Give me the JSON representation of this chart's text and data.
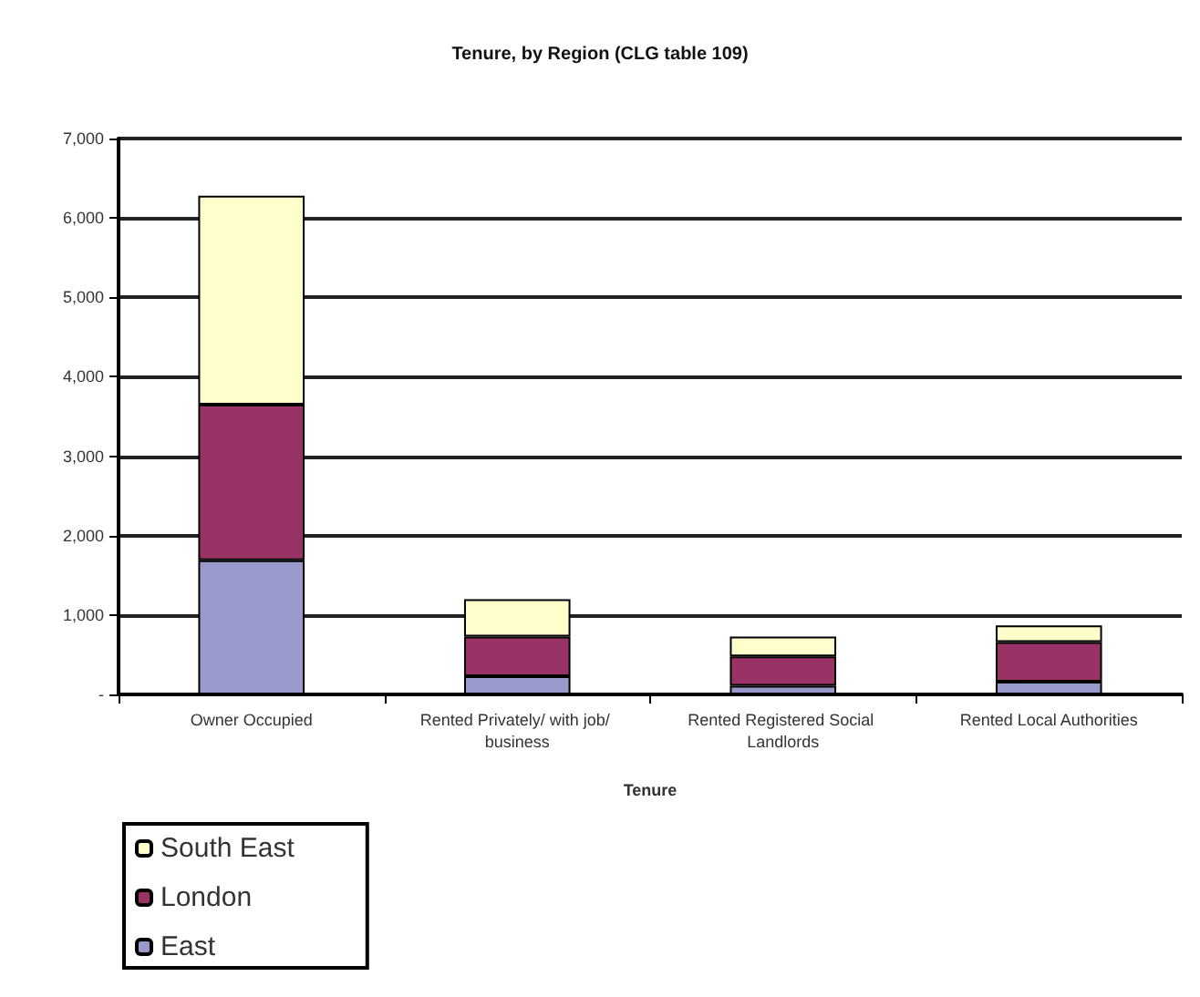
{
  "chart_data": {
    "type": "bar",
    "title": "Tenure, by Region (CLG table 109)",
    "xlabel": "Tenure",
    "categories": [
      "Owner Occupied",
      "Rented Privately/ with job/ business",
      "Rented Registered Social Landlords",
      "Rented Local Authorities"
    ],
    "stacked": true,
    "series": [
      {
        "name": "East",
        "color": "#9999cc",
        "values": [
          1690,
          230,
          110,
          160
        ]
      },
      {
        "name": "London",
        "color": "#993366",
        "values": [
          1960,
          500,
          370,
          500
        ]
      },
      {
        "name": "South East",
        "color": "#ffffcc",
        "values": [
          2630,
          470,
          250,
          210
        ]
      }
    ],
    "ylim": [
      0,
      7000
    ],
    "yticks": [
      {
        "value": 0,
        "label": "-"
      },
      {
        "value": 1000,
        "label": "1,000"
      },
      {
        "value": 2000,
        "label": "2,000"
      },
      {
        "value": 3000,
        "label": "3,000"
      },
      {
        "value": 4000,
        "label": "4,000"
      },
      {
        "value": 5000,
        "label": "5,000"
      },
      {
        "value": 6000,
        "label": "6,000"
      },
      {
        "value": 7000,
        "label": "7,000"
      }
    ],
    "grid": "y",
    "legend": "bottom left"
  }
}
